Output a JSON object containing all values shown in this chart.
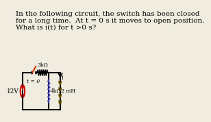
{
  "title_lines": [
    "In the following circuit, the switch has been closed",
    "for a long time.  At t = 0 s it moves to open position.",
    "What is i(t) for t >0 s?"
  ],
  "bg_color": "#f0ece0",
  "text_color": "#000000",
  "title_fontsize": 7.5,
  "source_label": "12V",
  "source_color": "#cc0000",
  "r1_label": "3kΩ",
  "r2_label": "4kΩ",
  "l_label": "2 mH",
  "switch_label": "t = 0",
  "current_label": "i",
  "switch_color": "#cc3300",
  "r2_color": "#4444cc",
  "inductor_color": "#886600"
}
